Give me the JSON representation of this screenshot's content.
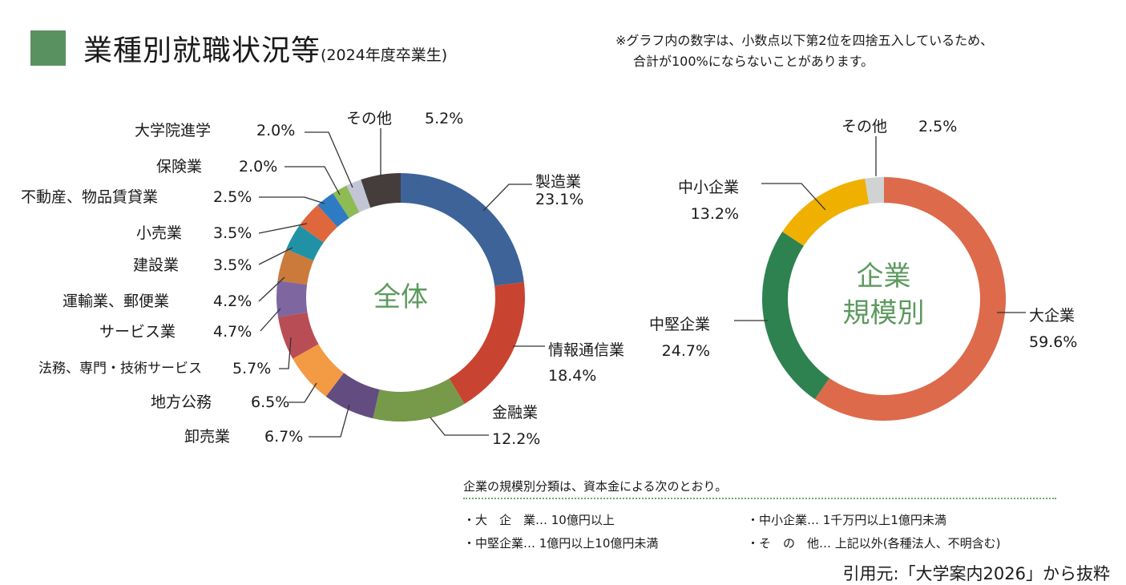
{
  "header": {
    "title": "業種別就職状況等",
    "subtitle": "(2024年度卒業生)",
    "note_line1": "※グラフ内の数字は、小数点以下第2位を四捨五入しているため、",
    "note_line2": "合計が100%にならないことがあります。",
    "accent": "#5a9160"
  },
  "chart_data": [
    {
      "type": "pie",
      "donut": true,
      "center_label": "全体",
      "start": "top",
      "direction": "clockwise",
      "slices": [
        {
          "label": "製造業",
          "value": 23.1,
          "pct": "23.1%",
          "color": "#3d6399"
        },
        {
          "label": "情報通信業",
          "value": 18.4,
          "pct": "18.4%",
          "color": "#c94331"
        },
        {
          "label": "金融業",
          "value": 12.2,
          "pct": "12.2%",
          "color": "#77994a"
        },
        {
          "label": "卸売業",
          "value": 6.7,
          "pct": "6.7%",
          "color": "#634d80"
        },
        {
          "label": "地方公務",
          "value": 6.5,
          "pct": "6.5%",
          "color": "#f39a45"
        },
        {
          "label": "法務、専門・技術サービス",
          "value": 5.7,
          "pct": "5.7%",
          "color": "#b94d55"
        },
        {
          "label": "サービス業",
          "value": 4.7,
          "pct": "4.7%",
          "color": "#7e66a0"
        },
        {
          "label": "運輸業、郵便業",
          "value": 4.2,
          "pct": "4.2%",
          "color": "#cb7a3b"
        },
        {
          "label": "建設業",
          "value": 3.5,
          "pct": "3.5%",
          "color": "#2192a6"
        },
        {
          "label": "小売業",
          "value": 3.5,
          "pct": "3.5%",
          "color": "#e0663c"
        },
        {
          "label": "不動産、物品賃貸業",
          "value": 2.5,
          "pct": "2.5%",
          "color": "#2f7bc3"
        },
        {
          "label": "保険業",
          "value": 2.0,
          "pct": "2.0%",
          "color": "#8fbb55"
        },
        {
          "label": "大学院進学",
          "value": 2.0,
          "pct": "2.0%",
          "color": "#c2c6d4"
        },
        {
          "label": "その他",
          "value": 5.2,
          "pct": "5.2%",
          "color": "#453d3b"
        }
      ]
    },
    {
      "type": "pie",
      "donut": true,
      "center_label_1": "企業",
      "center_label_2": "規模別",
      "start": "top",
      "direction": "clockwise",
      "slices": [
        {
          "label": "大企業",
          "value": 59.6,
          "pct": "59.6%",
          "color": "#dc6a4b"
        },
        {
          "label": "中堅企業",
          "value": 24.7,
          "pct": "24.7%",
          "color": "#2e8250"
        },
        {
          "label": "中小企業",
          "value": 13.2,
          "pct": "13.2%",
          "color": "#f0b000"
        },
        {
          "label": "その他",
          "value": 2.5,
          "pct": "2.5%",
          "color": "#d1d3d3"
        }
      ]
    }
  ],
  "legend": {
    "title": "企業の規模別分類は、資本金による次のとおり。",
    "items": [
      "・大　企　業… 10億円以上",
      "・中小企業… 1千万円以上1億円未満",
      "・中堅企業… 1億円以上10億円未満",
      "・そ　の　他… 上記以外(各種法人、不明含む)"
    ]
  },
  "source": "引用元:「大学案内2026」から抜粋"
}
